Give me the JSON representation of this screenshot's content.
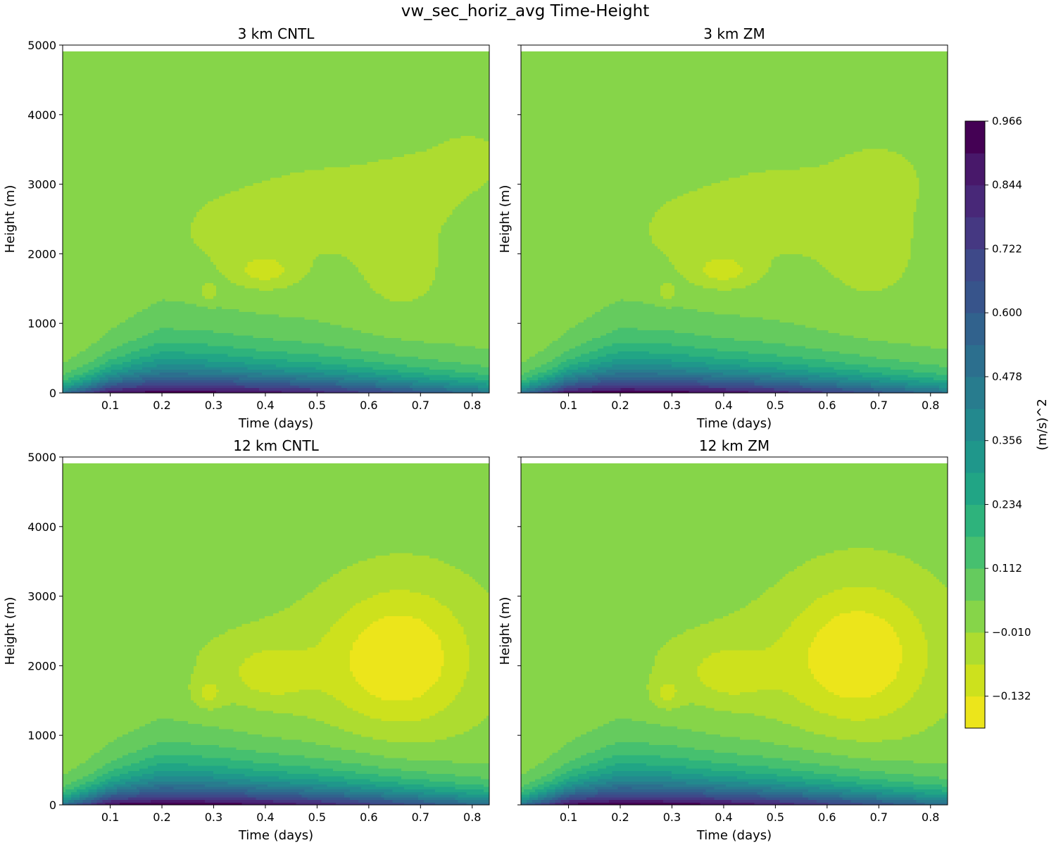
{
  "figure": {
    "title": "vw_sec_horiz_avg Time-Height"
  },
  "chart_data": {
    "type": "heatmap",
    "subtype": "filled-contour-time-height",
    "shared": {
      "xlabel": "Time (days)",
      "ylabel": "Height (m)",
      "xlim": [
        0.008,
        0.833
      ],
      "ylim": [
        0,
        5000
      ],
      "xticks": [
        0.1,
        0.2,
        0.3,
        0.4,
        0.5,
        0.6,
        0.7,
        0.8
      ],
      "xtick_labels": [
        "0.1",
        "0.2",
        "0.3",
        "0.4",
        "0.5",
        "0.6",
        "0.7",
        "0.8"
      ],
      "yticks": [
        0,
        1000,
        2000,
        3000,
        4000,
        5000
      ],
      "ytick_labels": [
        "0",
        "1000",
        "2000",
        "3000",
        "4000",
        "5000"
      ],
      "data_top_height": 4910
    },
    "colorbar": {
      "label": "(m/s)^2",
      "min": -0.193,
      "max": 0.966,
      "tick_values": [
        -0.132,
        -0.01,
        0.112,
        0.234,
        0.356,
        0.478,
        0.6,
        0.722,
        0.844,
        0.966
      ],
      "tick_labels": [
        "−0.132",
        "−0.010",
        "0.112",
        "0.234",
        "0.356",
        "0.478",
        "0.600",
        "0.722",
        "0.844",
        "0.966"
      ],
      "levels": [
        -0.193,
        -0.132,
        -0.071,
        -0.01,
        0.051,
        0.112,
        0.173,
        0.234,
        0.295,
        0.356,
        0.417,
        0.478,
        0.539,
        0.6,
        0.661,
        0.722,
        0.783,
        0.844,
        0.905,
        0.966
      ],
      "colors": [
        "#ece51b",
        "#cde11d",
        "#addc30",
        "#86d549",
        "#65cb5e",
        "#46c06f",
        "#2eb37c",
        "#21a585",
        "#1f978b",
        "#23898e",
        "#287c8e",
        "#2c6f8e",
        "#31628d",
        "#37548b",
        "#3e4989",
        "#453882",
        "#482878",
        "#48186a",
        "#440154"
      ]
    },
    "panels": [
      {
        "title": "3 km CNTL",
        "bl_max": 0.94,
        "bl_peak_t": 0.23,
        "bl_decay": 0.52,
        "bl_top": [
          [
            0.01,
            400
          ],
          [
            0.06,
            550
          ],
          [
            0.1,
            700
          ],
          [
            0.2,
            1050
          ],
          [
            0.3,
            1000
          ],
          [
            0.4,
            900
          ],
          [
            0.5,
            850
          ],
          [
            0.6,
            780
          ],
          [
            0.7,
            700
          ],
          [
            0.833,
            600
          ]
        ],
        "cells": [
          {
            "t": 0.4,
            "z": 1750,
            "st": 0.045,
            "sz": 170,
            "v": -0.1
          },
          {
            "t": 0.29,
            "z": 1450,
            "st": 0.012,
            "sz": 90,
            "v": -0.09
          },
          {
            "t": 0.35,
            "z": 2300,
            "st": 0.1,
            "sz": 500,
            "v": -0.05
          },
          {
            "t": 0.52,
            "z": 2700,
            "st": 0.09,
            "sz": 420,
            "v": -0.055
          },
          {
            "t": 0.66,
            "z": 1800,
            "st": 0.07,
            "sz": 600,
            "v": -0.05
          },
          {
            "t": 0.7,
            "z": 3000,
            "st": 0.08,
            "sz": 400,
            "v": -0.045
          },
          {
            "t": 0.8,
            "z": 3400,
            "st": 0.05,
            "sz": 300,
            "v": -0.04
          }
        ]
      },
      {
        "title": "3 km ZM",
        "bl_max": 0.95,
        "bl_peak_t": 0.23,
        "bl_decay": 0.52,
        "bl_top": [
          [
            0.01,
            400
          ],
          [
            0.06,
            550
          ],
          [
            0.1,
            700
          ],
          [
            0.2,
            1050
          ],
          [
            0.3,
            1000
          ],
          [
            0.4,
            900
          ],
          [
            0.5,
            850
          ],
          [
            0.6,
            780
          ],
          [
            0.7,
            700
          ],
          [
            0.833,
            600
          ]
        ],
        "cells": [
          {
            "t": 0.4,
            "z": 1750,
            "st": 0.045,
            "sz": 170,
            "v": -0.1
          },
          {
            "t": 0.29,
            "z": 1450,
            "st": 0.012,
            "sz": 90,
            "v": -0.09
          },
          {
            "t": 0.35,
            "z": 2300,
            "st": 0.1,
            "sz": 500,
            "v": -0.05
          },
          {
            "t": 0.52,
            "z": 2700,
            "st": 0.09,
            "sz": 420,
            "v": -0.055
          },
          {
            "t": 0.68,
            "z": 2100,
            "st": 0.08,
            "sz": 700,
            "v": -0.05
          },
          {
            "t": 0.7,
            "z": 3100,
            "st": 0.06,
            "sz": 350,
            "v": -0.045
          }
        ]
      },
      {
        "title": "12 km CNTL",
        "bl_max": 0.96,
        "bl_peak_t": 0.22,
        "bl_decay": 0.55,
        "bl_top": [
          [
            0.01,
            400
          ],
          [
            0.06,
            550
          ],
          [
            0.1,
            700
          ],
          [
            0.2,
            1050
          ],
          [
            0.3,
            1000
          ],
          [
            0.4,
            900
          ],
          [
            0.5,
            850
          ],
          [
            0.6,
            780
          ],
          [
            0.7,
            700
          ],
          [
            0.833,
            600
          ]
        ],
        "cells": [
          {
            "t": 0.66,
            "z": 2100,
            "st": 0.09,
            "sz": 700,
            "v": -0.16
          },
          {
            "t": 0.41,
            "z": 1900,
            "st": 0.05,
            "sz": 250,
            "v": -0.09
          },
          {
            "t": 0.29,
            "z": 1600,
            "st": 0.02,
            "sz": 150,
            "v": -0.09
          },
          {
            "t": 0.4,
            "z": 1900,
            "st": 0.15,
            "sz": 600,
            "v": -0.05
          },
          {
            "t": 0.68,
            "z": 2200,
            "st": 0.15,
            "sz": 900,
            "v": -0.05
          }
        ]
      },
      {
        "title": "12 km ZM",
        "bl_max": 0.96,
        "bl_peak_t": 0.22,
        "bl_decay": 0.55,
        "bl_top": [
          [
            0.01,
            400
          ],
          [
            0.06,
            550
          ],
          [
            0.1,
            700
          ],
          [
            0.2,
            1050
          ],
          [
            0.3,
            1000
          ],
          [
            0.4,
            900
          ],
          [
            0.5,
            850
          ],
          [
            0.6,
            780
          ],
          [
            0.7,
            700
          ],
          [
            0.833,
            600
          ]
        ],
        "cells": [
          {
            "t": 0.66,
            "z": 2150,
            "st": 0.09,
            "sz": 700,
            "v": -0.16
          },
          {
            "t": 0.41,
            "z": 1900,
            "st": 0.05,
            "sz": 250,
            "v": -0.09
          },
          {
            "t": 0.29,
            "z": 1600,
            "st": 0.02,
            "sz": 150,
            "v": -0.09
          },
          {
            "t": 0.4,
            "z": 1900,
            "st": 0.15,
            "sz": 600,
            "v": -0.05
          },
          {
            "t": 0.68,
            "z": 2250,
            "st": 0.15,
            "sz": 950,
            "v": -0.05
          }
        ]
      }
    ]
  }
}
